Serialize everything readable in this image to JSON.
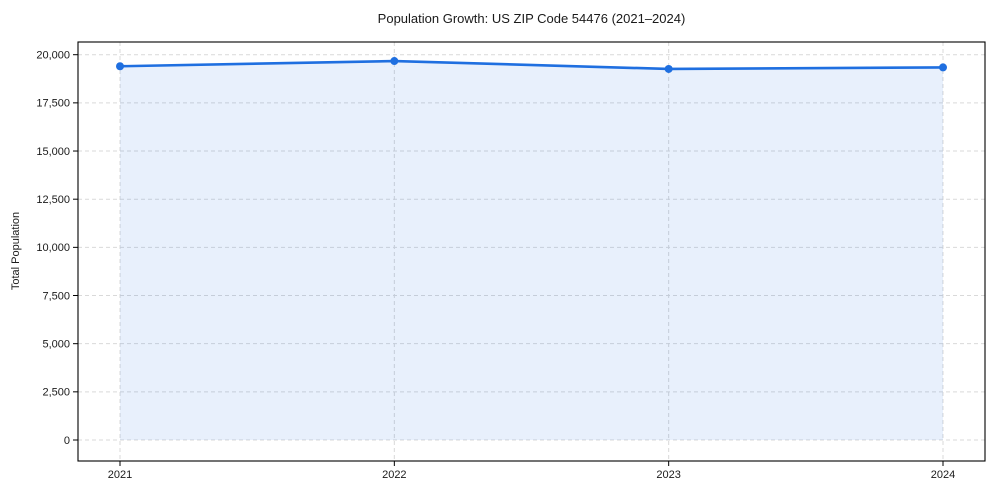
{
  "chart_data": {
    "type": "line",
    "title": "Population Growth: US ZIP Code 54476 (2021–2024)",
    "xlabel": "",
    "ylabel": "Total Population",
    "categories": [
      "2021",
      "2022",
      "2023",
      "2024"
    ],
    "series": [
      {
        "name": "Total Population",
        "values": [
          19400,
          19670,
          19260,
          19340
        ]
      }
    ],
    "ylim": [
      0,
      20000
    ],
    "yticks": [
      0,
      2500,
      5000,
      7500,
      10000,
      12500,
      15000,
      17500,
      20000
    ],
    "ytick_labels": [
      "0",
      "2,500",
      "5,000",
      "7,500",
      "10,000",
      "12,500",
      "15,000",
      "17,500",
      "20,000"
    ],
    "grid": true,
    "grid_style": "dashed",
    "legend": "none",
    "area_fill": true,
    "marker": "circle",
    "colors": {
      "line": "#1f6fe0",
      "fill": "rgba(31,111,224,0.10)",
      "grid": "#d9d9d9",
      "axis": "#000000",
      "text": "#1a1a1a",
      "background": "#ffffff"
    }
  }
}
